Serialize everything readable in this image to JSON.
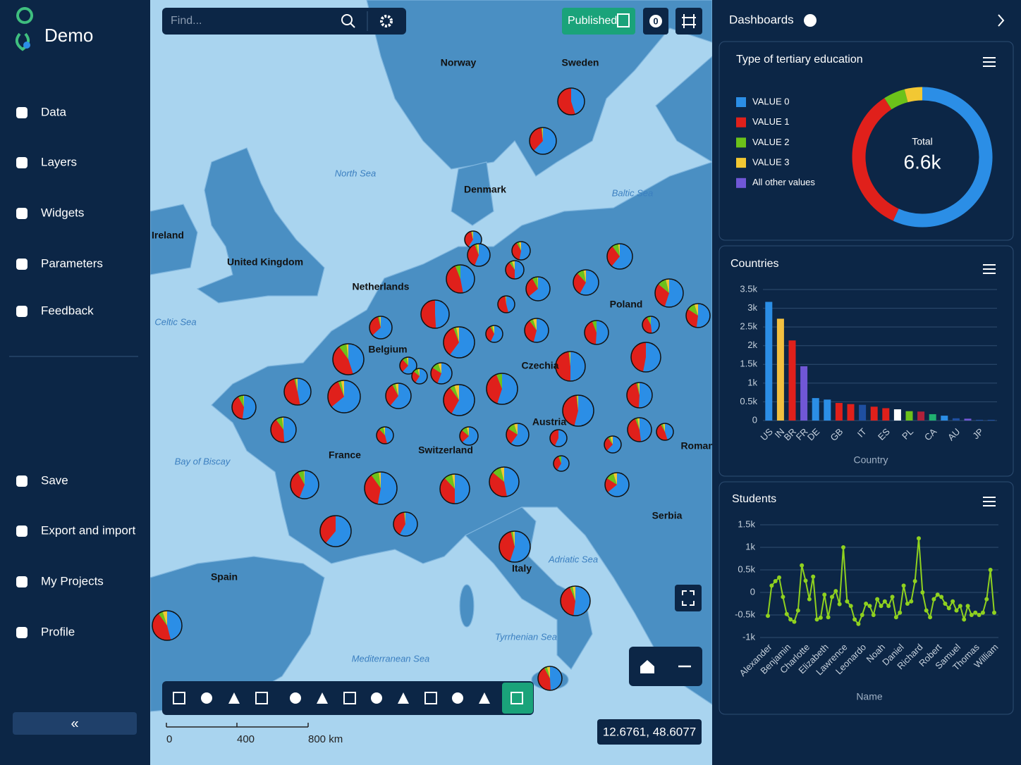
{
  "sidebar": {
    "brand": "Demo",
    "nav": [
      "Data",
      "Layers",
      "Widgets",
      "Parameters",
      "Feedback"
    ],
    "bottom_nav": [
      "Save",
      "Export and import",
      "My Projects",
      "Profile"
    ],
    "collapse": "«"
  },
  "map": {
    "search_placeholder": "Find...",
    "published": "Published",
    "badge": "0",
    "labels": [
      "Norway",
      "Sweden",
      "North Sea",
      "Denmark",
      "Baltic Sea",
      "Ireland",
      "United Kingdom",
      "Netherlands",
      "Poland",
      "Celtic Sea",
      "Belgium",
      "Czechia",
      "Austria",
      "Bay of Biscay",
      "France",
      "Switzerland",
      "Romania",
      "Serbia",
      "Spain",
      "Adriatic Sea",
      "Italy",
      "Tyrrhenian Sea",
      "Mediterranean Sea"
    ],
    "scale": [
      "0",
      "400",
      "800 km"
    ],
    "coordinates": "12.6761, 48.6077"
  },
  "dashboards": {
    "title": "Dashboards",
    "widgets": [
      {
        "type": "pie",
        "title": "Type of tertiary education",
        "categories": [
          "VALUE 0",
          "VALUE 1",
          "VALUE 2",
          "VALUE 3",
          "All other values"
        ],
        "values": [
          3750,
          2250,
          330,
          270,
          0
        ],
        "colors": [
          "#2b8ee6",
          "#e0201b",
          "#6cc21a",
          "#f2c833",
          "#7057d6"
        ],
        "total_label": "Total",
        "total": {
          "value": 6600,
          "label": "6.6k"
        }
      },
      {
        "type": "bar",
        "title": "Countries",
        "xlabel": "Country",
        "grid": true,
        "categories": [
          "US",
          "IN",
          "BR",
          "FR",
          "DE",
          null,
          "GB",
          null,
          "IT",
          null,
          "ES",
          null,
          "PL",
          null,
          "CA",
          null,
          "AU",
          null,
          "JP",
          null
        ],
        "values": [
          3170,
          2720,
          2140,
          1450,
          600,
          560,
          470,
          440,
          420,
          370,
          330,
          300,
          250,
          240,
          170,
          130,
          60,
          50,
          20,
          20
        ],
        "colors": [
          "#2b8ee6",
          "#f2c040",
          "#e0201b",
          "#7057d6",
          "#2b8ee6",
          "#2b8ee6",
          "#e0201b",
          "#e0201b",
          "#1f4fa0",
          "#e0201b",
          "#e0201b",
          "#ffffff",
          "#6cc21a",
          "#b0203a",
          "#20b070",
          "#2b8ee6",
          "#1f4fa0",
          "#7057d6",
          "#1f4fa0",
          "#1f4fa0"
        ],
        "ylim": [
          0,
          3500
        ],
        "yticks": [
          0,
          {
            "value": 500,
            "label": "0.5k"
          },
          {
            "value": 1000,
            "label": "1k"
          },
          {
            "value": 1500,
            "label": "1.5k"
          },
          {
            "value": 2000,
            "label": "2k"
          },
          {
            "value": 2500,
            "label": "2.5k"
          },
          {
            "value": 3000,
            "label": "3k"
          },
          {
            "value": 3500,
            "label": "3.5k"
          }
        ]
      },
      {
        "type": "line",
        "title": "Students",
        "xlabel": "Name",
        "grid": true,
        "color": "#8fd11f",
        "categories": [
          "Alexander",
          null,
          null,
          null,
          null,
          "Benjamin",
          null,
          null,
          null,
          null,
          "Charlotte",
          null,
          null,
          null,
          null,
          "Elizabeth",
          null,
          null,
          null,
          null,
          "Lawrence",
          null,
          null,
          null,
          null,
          "Leonardo",
          null,
          null,
          null,
          null,
          "Noah",
          null,
          null,
          null,
          null,
          "Daniel",
          null,
          null,
          null,
          null,
          "Richard",
          null,
          null,
          null,
          null,
          "Robert",
          null,
          null,
          null,
          null,
          "Samuel",
          null,
          null,
          null,
          null,
          "Thomas",
          null,
          null,
          null,
          null,
          "William"
        ],
        "values": [
          -520,
          150,
          250,
          330,
          -100,
          -480,
          -600,
          -650,
          -400,
          600,
          260,
          -150,
          350,
          -600,
          -560,
          -50,
          -550,
          -100,
          30,
          -260,
          1000,
          -200,
          -300,
          -600,
          -700,
          -500,
          -250,
          -300,
          -500,
          -150,
          -300,
          -200,
          -300,
          -100,
          -550,
          -450,
          150,
          -250,
          -200,
          250,
          1200,
          0,
          -400,
          -550,
          -150,
          -50,
          -100,
          -250,
          -350,
          -200,
          -400,
          -300,
          -600,
          -300,
          -500,
          -450,
          -500,
          -450,
          -150,
          500,
          -450
        ],
        "ylim": [
          -1000,
          1500
        ],
        "yticks": [
          {
            "value": -1000,
            "label": "-1k"
          },
          {
            "value": -500,
            "label": "-0.5k"
          },
          0,
          {
            "value": 500,
            "label": "0.5k"
          },
          {
            "value": 1000,
            "label": "1k"
          },
          {
            "value": 1500,
            "label": "1.5k"
          }
        ]
      }
    ]
  }
}
